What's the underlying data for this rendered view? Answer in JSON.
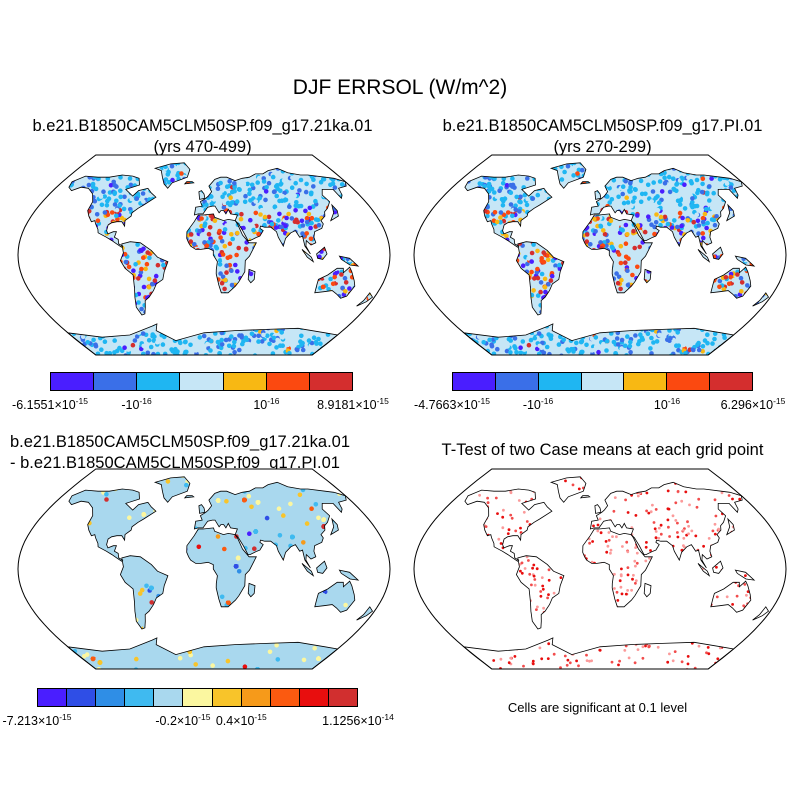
{
  "title": "DJF ERRSOL (W/m^2)",
  "panels": {
    "top_left": {
      "title_line1": "b.e21.B1850CAM5CLM50SP.f09_g17.21ka.01",
      "title_line2": "(yrs 470-499)",
      "colorbar": {
        "colors": [
          "#4a1eff",
          "#3a6fe8",
          "#1fb6f2",
          "#c6e6f6",
          "#f8b813",
          "#fb4910",
          "#d42e2e"
        ],
        "labels": [
          {
            "mant": "-6.1551",
            "exp": "-15",
            "sci": true
          },
          {
            "mant": "-10",
            "exp": "-16",
            "sci": false
          },
          {
            "mant": "10",
            "exp": "-16",
            "sci": false
          },
          {
            "mant": "8.9181",
            "exp": "-15",
            "sci": true
          }
        ]
      }
    },
    "top_right": {
      "title_line1": "b.e21.B1850CAM5CLM50SP.f09_g17.PI.01",
      "title_line2": "(yrs 270-299)",
      "colorbar": {
        "colors": [
          "#4a1eff",
          "#3a6fe8",
          "#1fb6f2",
          "#c6e6f6",
          "#f8b813",
          "#fb4910",
          "#d42e2e"
        ],
        "labels": [
          {
            "mant": "-4.7663",
            "exp": "-15",
            "sci": true
          },
          {
            "mant": "-10",
            "exp": "-16",
            "sci": false
          },
          {
            "mant": "10",
            "exp": "-16",
            "sci": false
          },
          {
            "mant": "6.296",
            "exp": "-15",
            "sci": true
          }
        ]
      }
    },
    "bottom_left": {
      "title_line1": "b.e21.B1850CAM5CLM50SP.f09_g17.21ka.01",
      "title_line2": "- b.e21.B1850CAM5CLM50SP.f09_g17.PI.01",
      "colorbar": {
        "colors": [
          "#4a1eff",
          "#2f4ee6",
          "#2f8ee6",
          "#3fbaf0",
          "#a9d8ee",
          "#fbf7a0",
          "#f8c42a",
          "#f69a1a",
          "#fb5a10",
          "#e80e0e",
          "#d12f2f"
        ],
        "labels": [
          {
            "mant": "-7.213",
            "exp": "-15",
            "sci": true
          },
          {
            "mant": "-0.2",
            "exp": "-15",
            "sci": true
          },
          {
            "mant": "0.4",
            "exp": "-15",
            "sci": true
          },
          {
            "mant": "1.1256",
            "exp": "-14",
            "sci": true
          }
        ]
      }
    },
    "bottom_right": {
      "title": "T-Test of two Case means at each grid point",
      "note": "Cells are significant at 0.1 level"
    }
  }
}
